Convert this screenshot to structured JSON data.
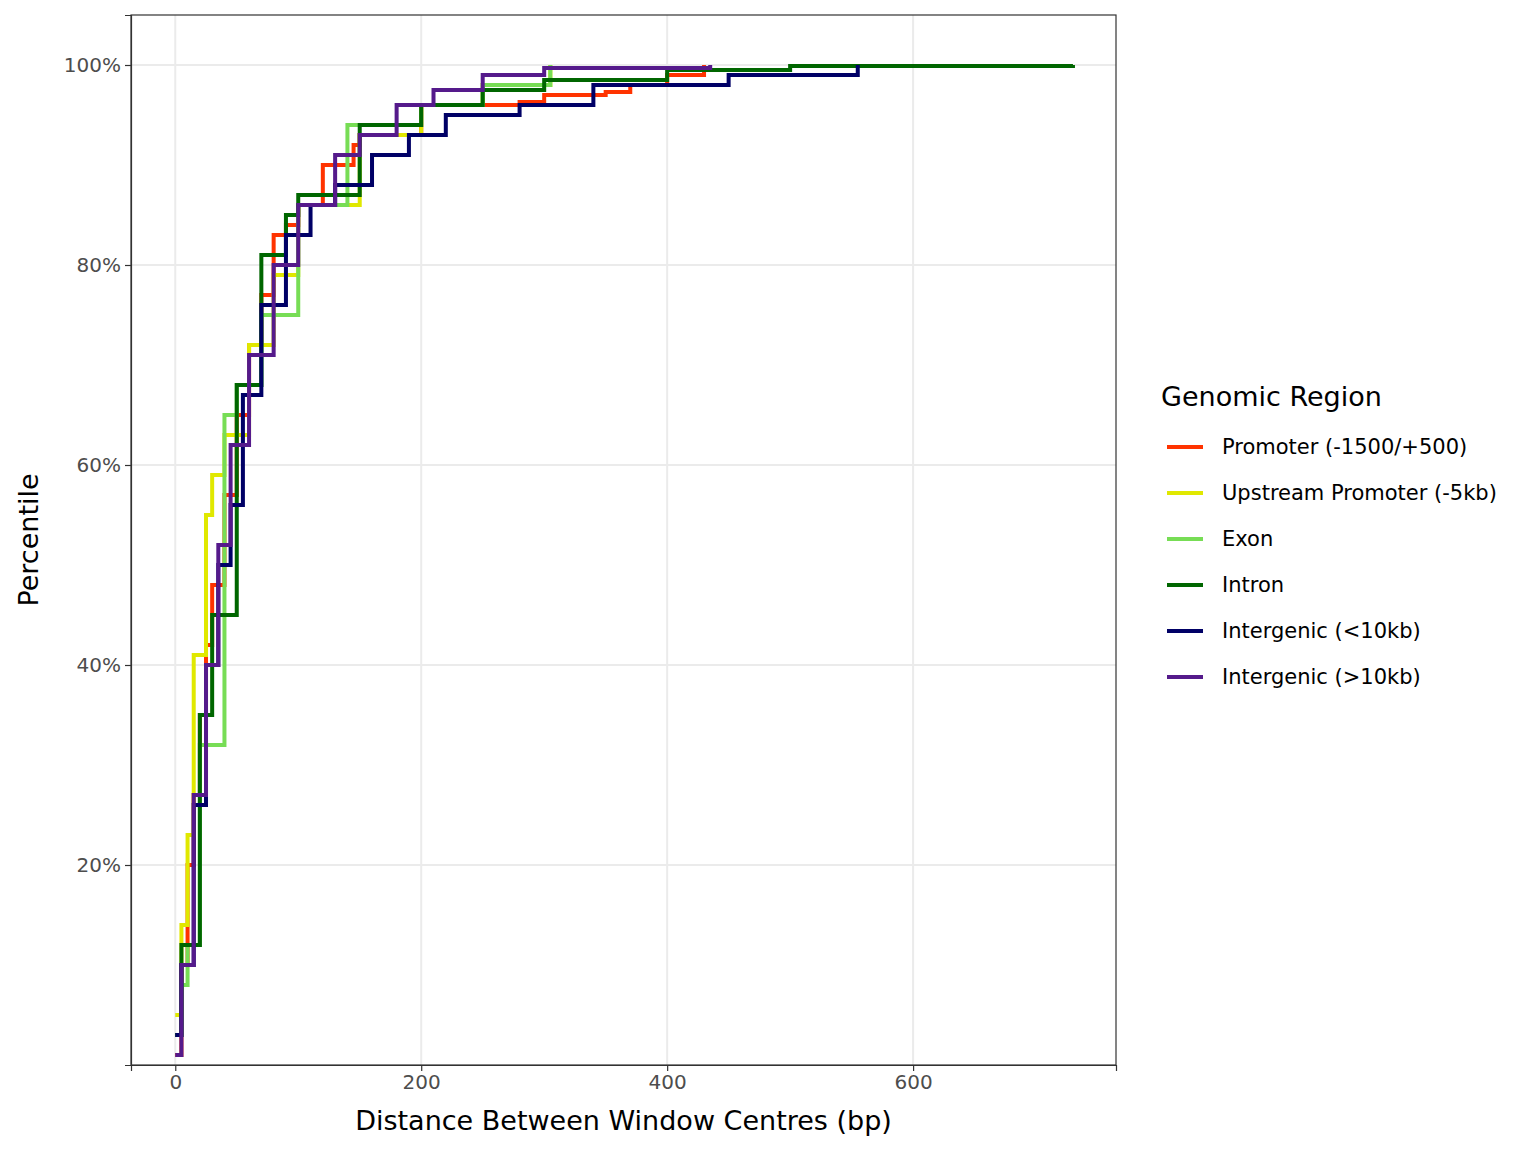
{
  "chart_data": {
    "type": "line",
    "line_style": "step",
    "x_label": "Distance Between Window Centres (bp)",
    "y_label": "Percentile",
    "legend_title": "Genomic Region",
    "legend": "right",
    "grid": true,
    "xlim": [
      -36,
      765
    ],
    "xticks": [
      0,
      200,
      400,
      600
    ],
    "ylim": [
      0,
      105
    ],
    "yticks": [
      {
        "value": 20,
        "label": "20%"
      },
      {
        "value": 40,
        "label": "40%"
      },
      {
        "value": 60,
        "label": "60%"
      },
      {
        "value": 80,
        "label": "80%"
      },
      {
        "value": 100,
        "label": "100%"
      }
    ],
    "series": [
      {
        "name": "Promoter (-1500/+500)",
        "color": "#ff3300",
        "x": [
          0,
          5,
          10,
          15,
          20,
          25,
          30,
          40,
          50,
          60,
          70,
          80,
          90,
          100,
          120,
          145,
          150,
          200,
          280,
          300,
          350,
          370,
          400,
          430
        ],
        "values": [
          1,
          10,
          20,
          27,
          35,
          42,
          48,
          57,
          65,
          72,
          77,
          83,
          84,
          86,
          90,
          92,
          93,
          96,
          96.3,
          97,
          97.3,
          98,
          99,
          100
        ]
      },
      {
        "name": "Upstream Promoter (-5kb)",
        "color": "#e0e800",
        "x": [
          0,
          5,
          10,
          15,
          25,
          30,
          40,
          60,
          80,
          100,
          150,
          200,
          250,
          305
        ],
        "values": [
          5,
          14,
          23,
          41,
          55,
          59,
          63,
          72,
          79,
          86,
          93,
          96,
          98,
          100
        ]
      },
      {
        "name": "Exon",
        "color": "#77dd55",
        "x": [
          0,
          5,
          10,
          20,
          40,
          50,
          70,
          100,
          140,
          200,
          250,
          305
        ],
        "values": [
          3,
          8,
          12,
          32,
          65,
          68,
          75,
          86,
          94,
          96,
          98,
          100
        ]
      },
      {
        "name": "Intron",
        "color": "#006600",
        "x": [
          0,
          5,
          20,
          30,
          50,
          70,
          90,
          100,
          150,
          200,
          250,
          300,
          400,
          500,
          730
        ],
        "values": [
          3,
          12,
          35,
          45,
          68,
          81,
          85,
          87,
          94,
          96,
          97.5,
          98.5,
          99.5,
          99.9,
          100
        ]
      },
      {
        "name": "Intergenic (<10kb)",
        "color": "#000066",
        "x": [
          0,
          5,
          15,
          25,
          35,
          45,
          55,
          70,
          90,
          110,
          130,
          160,
          190,
          220,
          280,
          340,
          450,
          555
        ],
        "values": [
          3,
          10,
          26,
          40,
          50,
          56,
          67,
          76,
          83,
          86,
          88,
          91,
          93,
          95,
          96,
          98,
          99,
          100
        ]
      },
      {
        "name": "Intergenic (>10kb)",
        "color": "#551a8b",
        "x": [
          0,
          5,
          15,
          25,
          35,
          45,
          60,
          80,
          100,
          130,
          150,
          180,
          210,
          250,
          300,
          435
        ],
        "values": [
          1,
          10,
          27,
          40,
          52,
          62,
          71,
          80,
          86,
          91,
          93,
          96,
          97.5,
          99,
          99.7,
          100
        ]
      }
    ]
  }
}
